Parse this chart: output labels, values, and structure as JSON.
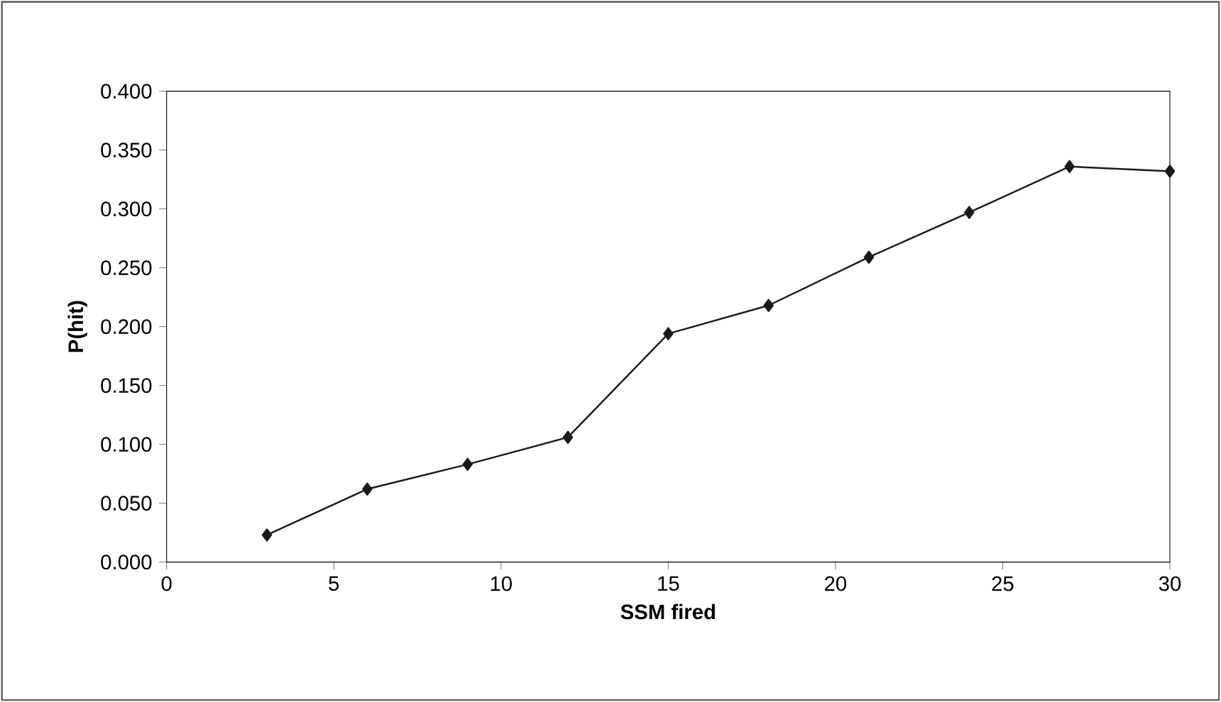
{
  "chart_data": {
    "type": "line",
    "xlabel": "SSM fired",
    "ylabel": "P(hit)",
    "x": [
      3,
      6,
      9,
      12,
      15,
      18,
      21,
      24,
      27,
      30
    ],
    "series": [
      {
        "color": "#1a1a1a",
        "values": [
          0.023,
          0.062,
          0.083,
          0.106,
          0.194,
          0.218,
          0.259,
          0.297,
          0.336,
          0.332
        ]
      }
    ],
    "xlim": [
      0,
      30
    ],
    "xticks": [
      0,
      5,
      10,
      15,
      20,
      25,
      30
    ],
    "ylim": [
      0,
      0.4
    ],
    "yticks": [
      {
        "value": 0,
        "label": "0.000"
      },
      {
        "value": 0.05,
        "label": "0.050"
      },
      {
        "value": 0.1,
        "label": "0.100"
      },
      {
        "value": 0.15,
        "label": "0.150"
      },
      {
        "value": 0.2,
        "label": "0.200"
      },
      {
        "value": 0.25,
        "label": "0.250"
      },
      {
        "value": 0.3,
        "label": "0.300"
      },
      {
        "value": 0.35,
        "label": "0.350"
      },
      {
        "value": 0.4,
        "label": "0.400"
      }
    ],
    "marker": "diamond",
    "line_style": "solid",
    "grid": false
  }
}
